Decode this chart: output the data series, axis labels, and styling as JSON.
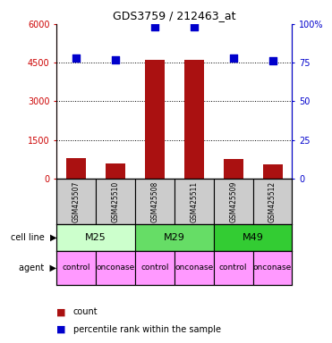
{
  "title": "GDS3759 / 212463_at",
  "samples": [
    "GSM425507",
    "GSM425510",
    "GSM425508",
    "GSM425511",
    "GSM425509",
    "GSM425512"
  ],
  "counts": [
    800,
    600,
    4600,
    4600,
    750,
    550
  ],
  "percentile_ranks": [
    78,
    77,
    98,
    98,
    78,
    76
  ],
  "ylim_left": [
    0,
    6000
  ],
  "ylim_right": [
    0,
    100
  ],
  "yticks_left": [
    0,
    1500,
    3000,
    4500,
    6000
  ],
  "ytick_labels_left": [
    "0",
    "1500",
    "3000",
    "4500",
    "6000"
  ],
  "yticks_right": [
    0,
    25,
    50,
    75,
    100
  ],
  "ytick_labels_right": [
    "0",
    "25",
    "50",
    "75",
    "100%"
  ],
  "cell_lines": [
    {
      "label": "M25",
      "cols": [
        0,
        1
      ],
      "color": "#ccffcc"
    },
    {
      "label": "M29",
      "cols": [
        2,
        3
      ],
      "color": "#66dd66"
    },
    {
      "label": "M49",
      "cols": [
        4,
        5
      ],
      "color": "#33cc33"
    }
  ],
  "agents": [
    {
      "label": "control",
      "col": 0,
      "color": "#ff99ff"
    },
    {
      "label": "onconase",
      "col": 1,
      "color": "#ff99ff"
    },
    {
      "label": "control",
      "col": 2,
      "color": "#ff99ff"
    },
    {
      "label": "onconase",
      "col": 3,
      "color": "#ff99ff"
    },
    {
      "label": "control",
      "col": 4,
      "color": "#ff99ff"
    },
    {
      "label": "onconase",
      "col": 5,
      "color": "#ff99ff"
    }
  ],
  "bar_color": "#aa1111",
  "dot_color": "#0000cc",
  "sample_row_color": "#cccccc",
  "grid_color": "#000000",
  "left_axis_color": "#cc0000",
  "right_axis_color": "#0000cc"
}
